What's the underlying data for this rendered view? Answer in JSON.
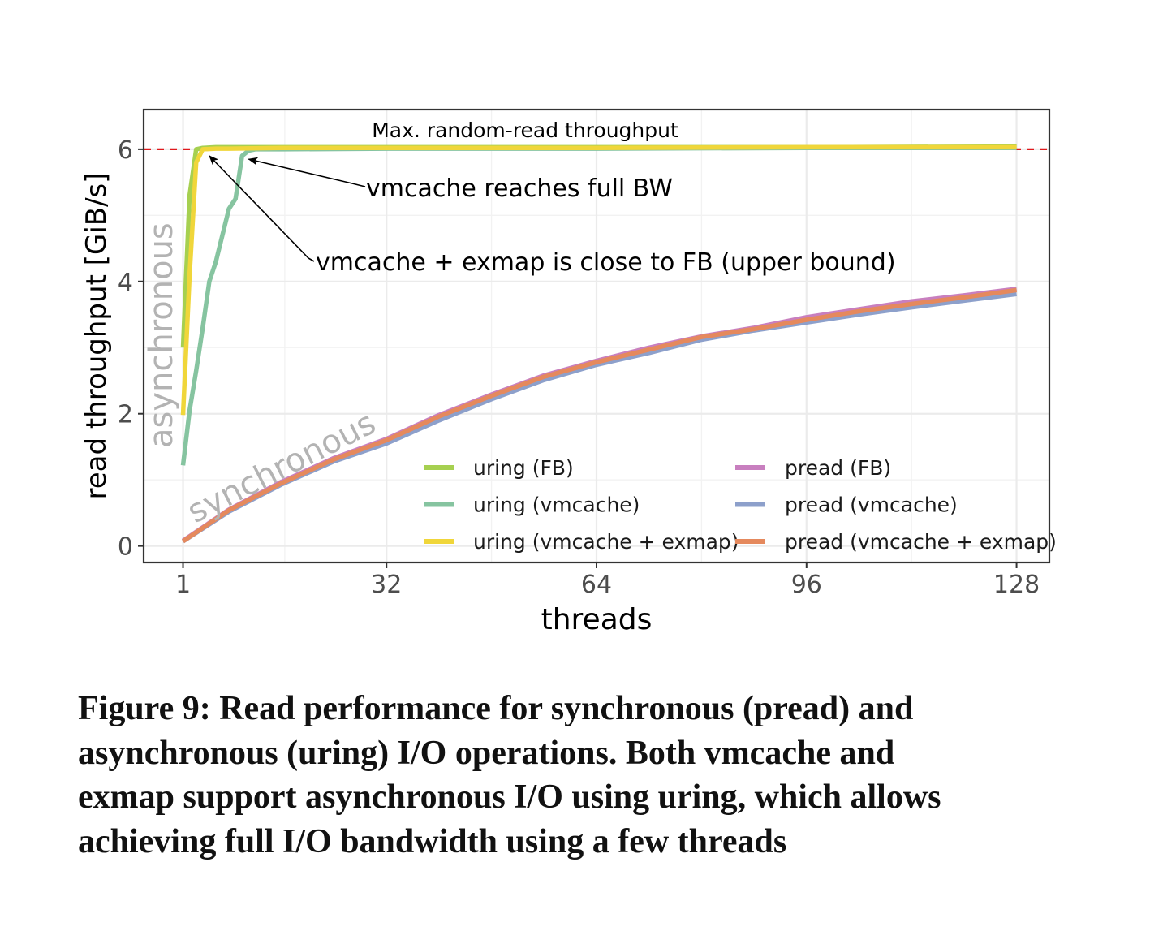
{
  "chart_data": {
    "type": "line",
    "xlabel": "threads",
    "ylabel": "read throughput [GiB/s]",
    "xticks": [
      1,
      32,
      64,
      96,
      128
    ],
    "yticks": [
      0,
      2,
      4,
      6
    ],
    "xlim": [
      -5,
      133
    ],
    "ylim": [
      -0.25,
      6.6
    ],
    "grid": true,
    "legend_position": "bottom-right",
    "reference_line": {
      "y": 6,
      "label": "Max. random-read throughput",
      "color": "#e0191c",
      "style": "dashed"
    },
    "annotations": [
      {
        "text": "vmcache reaches full BW",
        "arrow_to": {
          "x": 11,
          "y": 5.85
        }
      },
      {
        "text": "vmcache + exmap is close to FB (upper bound)",
        "arrow_to": {
          "x": 5,
          "y": 5.9
        }
      }
    ],
    "region_labels": [
      {
        "text": "asynchronous"
      },
      {
        "text": "synchronous"
      }
    ],
    "series": [
      {
        "name": "pread (FB)",
        "color": "#c87fbf",
        "x": [
          1,
          8,
          16,
          24,
          32,
          40,
          48,
          56,
          64,
          72,
          80,
          88,
          96,
          104,
          112,
          120,
          128
        ],
        "y": [
          0.08,
          0.55,
          0.97,
          1.33,
          1.62,
          1.98,
          2.29,
          2.58,
          2.8,
          3.0,
          3.17,
          3.3,
          3.46,
          3.58,
          3.7,
          3.79,
          3.89
        ]
      },
      {
        "name": "pread (vmcache)",
        "color": "#8da0cb",
        "x": [
          1,
          8,
          16,
          24,
          32,
          40,
          48,
          56,
          64,
          72,
          80,
          88,
          96,
          104,
          112,
          120,
          128
        ],
        "y": [
          0.07,
          0.52,
          0.93,
          1.28,
          1.55,
          1.9,
          2.22,
          2.51,
          2.74,
          2.92,
          3.12,
          3.26,
          3.38,
          3.5,
          3.61,
          3.71,
          3.81
        ]
      },
      {
        "name": "pread (vmcache + exmap)",
        "color": "#e5895d",
        "x": [
          1,
          8,
          16,
          24,
          32,
          40,
          48,
          56,
          64,
          72,
          80,
          88,
          96,
          104,
          112,
          120,
          128
        ],
        "y": [
          0.07,
          0.54,
          0.95,
          1.31,
          1.6,
          1.96,
          2.27,
          2.56,
          2.78,
          2.97,
          3.16,
          3.28,
          3.42,
          3.55,
          3.66,
          3.76,
          3.87
        ]
      },
      {
        "name": "uring (FB)",
        "color": "#a6d050",
        "x": [
          1,
          2,
          3,
          4,
          6,
          8,
          16,
          32,
          64,
          96,
          128
        ],
        "y": [
          3.0,
          5.3,
          6.0,
          6.02,
          6.03,
          6.03,
          6.03,
          6.03,
          6.03,
          6.03,
          6.04
        ]
      },
      {
        "name": "uring (vmcache)",
        "color": "#86c4a0",
        "x": [
          1,
          2,
          3,
          4,
          5,
          6,
          7,
          8,
          9,
          10,
          11,
          12,
          16,
          32,
          64,
          96,
          128
        ],
        "y": [
          1.22,
          2.05,
          2.65,
          3.3,
          4.0,
          4.3,
          4.7,
          5.1,
          5.25,
          5.9,
          5.98,
          6.0,
          6.0,
          6.01,
          6.01,
          6.02,
          6.02
        ]
      },
      {
        "name": "uring (vmcache + exmap)",
        "color": "#f0d63a",
        "x": [
          1,
          2,
          3,
          4,
          6,
          8,
          16,
          32,
          64,
          96,
          128
        ],
        "y": [
          1.98,
          4.1,
          5.8,
          6.0,
          6.01,
          6.01,
          6.02,
          6.02,
          6.02,
          6.03,
          6.03
        ]
      }
    ]
  },
  "caption": {
    "line1": "Figure 9: Read performance for synchronous (pread) and",
    "line2": "asynchronous (uring) I/O operations. Both vmcache and",
    "line3": "exmap support asynchronous I/O using uring, which allows",
    "line4": "achieving full I/O bandwidth using a few threads"
  }
}
